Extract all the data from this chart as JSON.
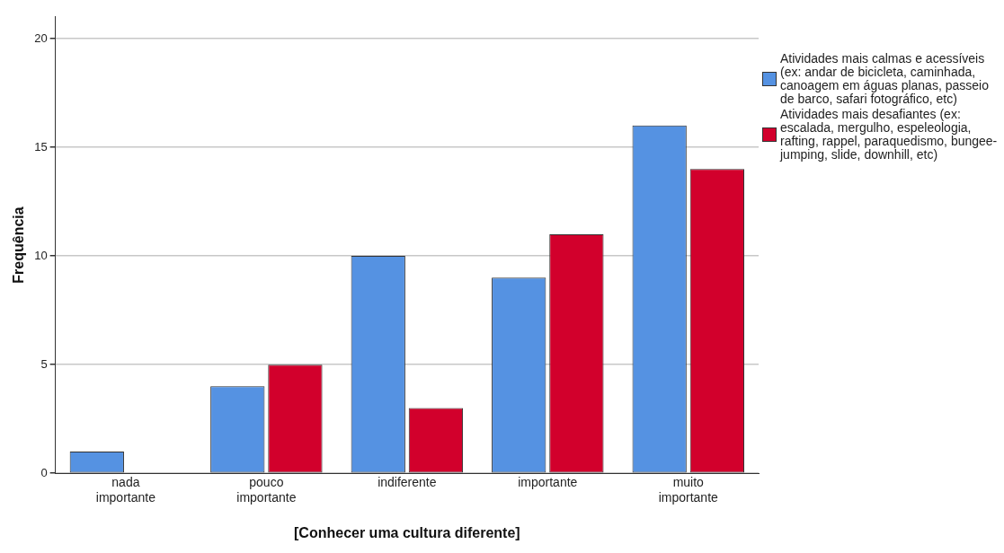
{
  "chart_data": {
    "type": "bar",
    "xlabel": "[Conhecer uma cultura diferente]",
    "ylabel": "Frequência",
    "categories": [
      "nada importante",
      "pouco importante",
      "indiferente",
      "importante",
      "muito importante"
    ],
    "series": [
      {
        "name": "Atividades mais calmas e acessíveis (ex: andar de bicicleta, caminhada, canoagem em águas planas, passeio de barco, safari fotográfico, etc)",
        "color": "#5592e2",
        "values": [
          1,
          4,
          10,
          9,
          16
        ]
      },
      {
        "name": "Atividades mais desafiantes (ex: escalada, mergulho, espeleologia, rafting, rappel, paraquedismo, bungee-jumping, slide, downhill, etc)",
        "color": "#d2002c",
        "values": [
          0,
          5,
          3,
          11,
          14
        ]
      }
    ],
    "ylim": [
      0,
      21
    ],
    "yticks": [
      0,
      5,
      10,
      15,
      20
    ],
    "grid": "y",
    "legend": "right"
  }
}
